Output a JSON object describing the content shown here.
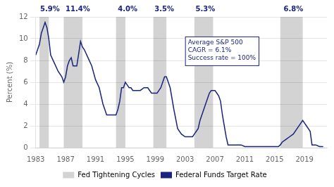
{
  "chart_data": {
    "type": "line",
    "ylabel": "Percent (%)",
    "xlim": [
      1983,
      2022
    ],
    "ylim": [
      0,
      12
    ],
    "xticks": [
      1983,
      1987,
      1991,
      1995,
      1999,
      2003,
      2007,
      2011,
      2015,
      2019
    ],
    "yticks": [
      0,
      2,
      4,
      6,
      8,
      10,
      12
    ],
    "grid": "y",
    "x": [
      1983.0,
      1983.25,
      1983.5,
      1983.75,
      1984.0,
      1984.25,
      1984.5,
      1984.75,
      1985.0,
      1985.5,
      1986.0,
      1986.5,
      1986.75,
      1987.0,
      1987.25,
      1987.5,
      1987.75,
      1988.0,
      1988.5,
      1989.0,
      1989.25,
      1989.5,
      1990.0,
      1990.5,
      1991.0,
      1991.5,
      1992.0,
      1992.5,
      1993.0,
      1993.5,
      1993.75,
      1994.0,
      1994.25,
      1994.5,
      1994.75,
      1995.0,
      1995.25,
      1995.5,
      1995.75,
      1996.0,
      1996.5,
      1997.0,
      1997.5,
      1997.75,
      1998.0,
      1998.5,
      1998.75,
      1999.0,
      1999.25,
      1999.5,
      1999.75,
      2000.0,
      2000.25,
      2000.5,
      2001.0,
      2001.5,
      2002.0,
      2002.5,
      2003.0,
      2003.5,
      2004.0,
      2004.25,
      2004.5,
      2004.75,
      2005.0,
      2005.25,
      2005.5,
      2005.75,
      2006.0,
      2006.25,
      2006.5,
      2006.75,
      2007.0,
      2007.25,
      2007.5,
      2007.75,
      2008.0,
      2008.25,
      2008.5,
      2008.75,
      2009.0,
      2009.5,
      2010.0,
      2010.5,
      2011.0,
      2011.5,
      2012.0,
      2012.5,
      2013.0,
      2013.5,
      2014.0,
      2014.5,
      2015.0,
      2015.5,
      2015.75,
      2016.0,
      2016.5,
      2017.0,
      2017.5,
      2018.0,
      2018.5,
      2018.75,
      2019.0,
      2019.25,
      2019.5,
      2019.75,
      2020.0,
      2020.5,
      2021.0,
      2021.5
    ],
    "series": [
      {
        "name": "Federal Funds Target Rate",
        "color": "#1a237e",
        "values": [
          8.5,
          9.0,
          9.5,
          10.5,
          11.0,
          11.5,
          11.0,
          10.0,
          8.5,
          7.75,
          7.0,
          6.5,
          6.0,
          6.5,
          7.5,
          8.0,
          8.25,
          7.5,
          7.5,
          9.75,
          9.25,
          9.0,
          8.25,
          7.5,
          6.25,
          5.5,
          4.0,
          3.0,
          3.0,
          3.0,
          3.0,
          3.5,
          4.25,
          5.5,
          5.5,
          6.0,
          5.75,
          5.5,
          5.5,
          5.25,
          5.25,
          5.25,
          5.5,
          5.5,
          5.5,
          5.0,
          5.0,
          5.0,
          5.0,
          5.25,
          5.5,
          6.0,
          6.5,
          6.5,
          5.5,
          3.5,
          1.75,
          1.25,
          1.0,
          1.0,
          1.0,
          1.25,
          1.5,
          1.75,
          2.5,
          3.0,
          3.5,
          4.0,
          4.5,
          5.0,
          5.25,
          5.25,
          5.25,
          5.0,
          4.75,
          4.25,
          3.0,
          2.0,
          1.0,
          0.25,
          0.25,
          0.25,
          0.25,
          0.25,
          0.1,
          0.1,
          0.1,
          0.1,
          0.1,
          0.1,
          0.1,
          0.1,
          0.1,
          0.1,
          0.25,
          0.5,
          0.75,
          1.0,
          1.25,
          1.75,
          2.25,
          2.5,
          2.25,
          2.0,
          1.75,
          1.5,
          0.25,
          0.25,
          0.1,
          0.1
        ]
      }
    ],
    "shaded_regions": {
      "name": "Fed Tightening Cycles",
      "color": "#d3d3d3",
      "ranges": [
        [
          1983.5,
          1984.75
        ],
        [
          1986.75,
          1989.25
        ],
        [
          1993.75,
          1995.0
        ],
        [
          1998.75,
          2000.5
        ],
        [
          2004.25,
          2006.75
        ],
        [
          2015.75,
          2018.75
        ]
      ]
    },
    "cagr_labels": [
      {
        "text": "5.9%",
        "x": 1983.6,
        "y": 12,
        "color": "#1a237e"
      },
      {
        "text": "11.4%",
        "x": 1987.0,
        "y": 12,
        "color": "#1a237e"
      },
      {
        "text": "4.0%",
        "x": 1994.0,
        "y": 12,
        "color": "#1a237e"
      },
      {
        "text": "3.5%",
        "x": 1998.9,
        "y": 12,
        "color": "#1a237e"
      },
      {
        "text": "5.3%",
        "x": 2004.4,
        "y": 12,
        "color": "#1a237e"
      },
      {
        "text": "6.8%",
        "x": 2016.2,
        "y": 12,
        "color": "#1a237e"
      }
    ],
    "annotation": {
      "text": "Average S&P 500\nCAGR = 6.1%\nSuccess rate = 100%",
      "x": 2003.0,
      "y": 10.2,
      "color": "#1a237e"
    }
  }
}
